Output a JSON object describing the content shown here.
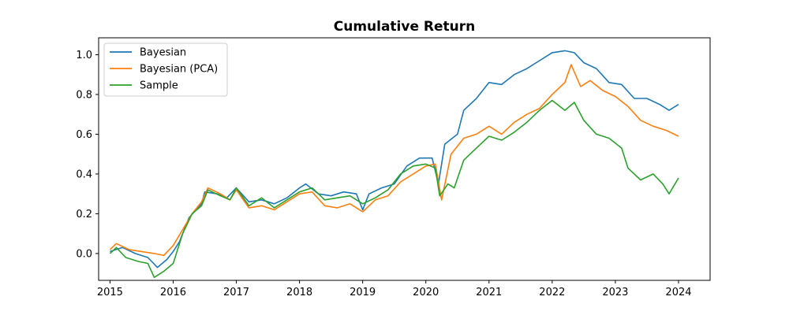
{
  "chart_data": {
    "type": "line",
    "title": "Cumulative Return",
    "xlabel": "",
    "ylabel": "",
    "xlim": [
      2014.82,
      2024.5
    ],
    "ylim": [
      -0.135,
      1.085
    ],
    "x_ticks": [
      2015,
      2016,
      2017,
      2018,
      2019,
      2020,
      2021,
      2022,
      2023,
      2024
    ],
    "y_ticks": [
      0.0,
      0.2,
      0.4,
      0.6,
      0.8,
      1.0
    ],
    "grid": false,
    "legend_position": "upper-left",
    "series": [
      {
        "name": "Bayesian",
        "color": "#1f77b4",
        "points": [
          [
            2015.0,
            0.01
          ],
          [
            2015.2,
            0.03
          ],
          [
            2015.4,
            0.0
          ],
          [
            2015.6,
            -0.02
          ],
          [
            2015.75,
            -0.07
          ],
          [
            2015.9,
            -0.03
          ],
          [
            2016.0,
            0.01
          ],
          [
            2016.1,
            0.06
          ],
          [
            2016.25,
            0.18
          ],
          [
            2016.45,
            0.25
          ],
          [
            2016.5,
            0.31
          ],
          [
            2016.7,
            0.3
          ],
          [
            2016.85,
            0.28
          ],
          [
            2017.0,
            0.33
          ],
          [
            2017.2,
            0.26
          ],
          [
            2017.4,
            0.27
          ],
          [
            2017.6,
            0.25
          ],
          [
            2017.8,
            0.28
          ],
          [
            2018.0,
            0.33
          ],
          [
            2018.1,
            0.35
          ],
          [
            2018.3,
            0.3
          ],
          [
            2018.5,
            0.29
          ],
          [
            2018.7,
            0.31
          ],
          [
            2018.9,
            0.3
          ],
          [
            2019.0,
            0.22
          ],
          [
            2019.1,
            0.3
          ],
          [
            2019.3,
            0.33
          ],
          [
            2019.5,
            0.35
          ],
          [
            2019.7,
            0.44
          ],
          [
            2019.9,
            0.48
          ],
          [
            2020.1,
            0.48
          ],
          [
            2020.2,
            0.35
          ],
          [
            2020.3,
            0.55
          ],
          [
            2020.5,
            0.6
          ],
          [
            2020.6,
            0.72
          ],
          [
            2020.8,
            0.78
          ],
          [
            2021.0,
            0.86
          ],
          [
            2021.2,
            0.85
          ],
          [
            2021.4,
            0.9
          ],
          [
            2021.6,
            0.93
          ],
          [
            2021.8,
            0.97
          ],
          [
            2022.0,
            1.01
          ],
          [
            2022.2,
            1.02
          ],
          [
            2022.35,
            1.01
          ],
          [
            2022.5,
            0.96
          ],
          [
            2022.7,
            0.93
          ],
          [
            2022.9,
            0.86
          ],
          [
            2023.1,
            0.85
          ],
          [
            2023.3,
            0.78
          ],
          [
            2023.5,
            0.78
          ],
          [
            2023.7,
            0.75
          ],
          [
            2023.85,
            0.72
          ],
          [
            2024.0,
            0.75
          ]
        ]
      },
      {
        "name": "Bayesian (PCA)",
        "color": "#ff7f0e",
        "points": [
          [
            2015.0,
            0.02
          ],
          [
            2015.1,
            0.05
          ],
          [
            2015.3,
            0.02
          ],
          [
            2015.5,
            0.01
          ],
          [
            2015.7,
            0.0
          ],
          [
            2015.85,
            -0.01
          ],
          [
            2016.0,
            0.04
          ],
          [
            2016.15,
            0.12
          ],
          [
            2016.3,
            0.2
          ],
          [
            2016.45,
            0.26
          ],
          [
            2016.55,
            0.33
          ],
          [
            2016.75,
            0.3
          ],
          [
            2016.9,
            0.27
          ],
          [
            2017.0,
            0.32
          ],
          [
            2017.2,
            0.23
          ],
          [
            2017.4,
            0.24
          ],
          [
            2017.6,
            0.22
          ],
          [
            2017.8,
            0.26
          ],
          [
            2018.0,
            0.3
          ],
          [
            2018.2,
            0.31
          ],
          [
            2018.4,
            0.24
          ],
          [
            2018.6,
            0.23
          ],
          [
            2018.8,
            0.25
          ],
          [
            2019.0,
            0.21
          ],
          [
            2019.2,
            0.27
          ],
          [
            2019.4,
            0.29
          ],
          [
            2019.6,
            0.36
          ],
          [
            2019.8,
            0.4
          ],
          [
            2020.0,
            0.44
          ],
          [
            2020.15,
            0.45
          ],
          [
            2020.25,
            0.27
          ],
          [
            2020.4,
            0.5
          ],
          [
            2020.6,
            0.58
          ],
          [
            2020.8,
            0.6
          ],
          [
            2021.0,
            0.64
          ],
          [
            2021.2,
            0.6
          ],
          [
            2021.4,
            0.66
          ],
          [
            2021.6,
            0.7
          ],
          [
            2021.8,
            0.73
          ],
          [
            2022.0,
            0.8
          ],
          [
            2022.2,
            0.86
          ],
          [
            2022.3,
            0.95
          ],
          [
            2022.45,
            0.84
          ],
          [
            2022.6,
            0.87
          ],
          [
            2022.8,
            0.82
          ],
          [
            2023.0,
            0.79
          ],
          [
            2023.2,
            0.74
          ],
          [
            2023.4,
            0.67
          ],
          [
            2023.6,
            0.64
          ],
          [
            2023.8,
            0.62
          ],
          [
            2024.0,
            0.59
          ]
        ]
      },
      {
        "name": "Sample",
        "color": "#2ca02c",
        "points": [
          [
            2015.0,
            0.0
          ],
          [
            2015.1,
            0.03
          ],
          [
            2015.25,
            -0.02
          ],
          [
            2015.45,
            -0.04
          ],
          [
            2015.6,
            -0.05
          ],
          [
            2015.7,
            -0.12
          ],
          [
            2015.85,
            -0.09
          ],
          [
            2016.0,
            -0.05
          ],
          [
            2016.15,
            0.1
          ],
          [
            2016.3,
            0.2
          ],
          [
            2016.45,
            0.24
          ],
          [
            2016.55,
            0.32
          ],
          [
            2016.75,
            0.29
          ],
          [
            2016.9,
            0.27
          ],
          [
            2017.0,
            0.33
          ],
          [
            2017.2,
            0.24
          ],
          [
            2017.4,
            0.28
          ],
          [
            2017.6,
            0.23
          ],
          [
            2017.8,
            0.27
          ],
          [
            2018.0,
            0.31
          ],
          [
            2018.2,
            0.33
          ],
          [
            2018.4,
            0.27
          ],
          [
            2018.6,
            0.28
          ],
          [
            2018.8,
            0.29
          ],
          [
            2019.0,
            0.25
          ],
          [
            2019.2,
            0.28
          ],
          [
            2019.4,
            0.32
          ],
          [
            2019.6,
            0.4
          ],
          [
            2019.8,
            0.44
          ],
          [
            2020.0,
            0.45
          ],
          [
            2020.15,
            0.43
          ],
          [
            2020.22,
            0.29
          ],
          [
            2020.35,
            0.35
          ],
          [
            2020.45,
            0.33
          ],
          [
            2020.6,
            0.47
          ],
          [
            2020.8,
            0.53
          ],
          [
            2021.0,
            0.59
          ],
          [
            2021.2,
            0.57
          ],
          [
            2021.4,
            0.61
          ],
          [
            2021.6,
            0.66
          ],
          [
            2021.8,
            0.72
          ],
          [
            2022.0,
            0.77
          ],
          [
            2022.2,
            0.72
          ],
          [
            2022.35,
            0.76
          ],
          [
            2022.5,
            0.67
          ],
          [
            2022.7,
            0.6
          ],
          [
            2022.9,
            0.58
          ],
          [
            2023.1,
            0.53
          ],
          [
            2023.2,
            0.43
          ],
          [
            2023.4,
            0.37
          ],
          [
            2023.6,
            0.4
          ],
          [
            2023.75,
            0.35
          ],
          [
            2023.85,
            0.3
          ],
          [
            2024.0,
            0.38
          ]
        ]
      }
    ]
  }
}
